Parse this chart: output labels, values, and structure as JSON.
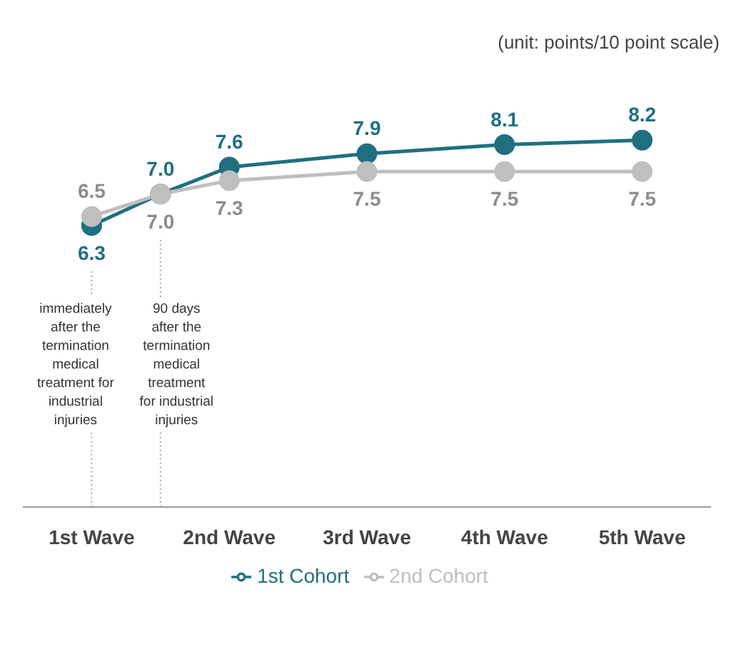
{
  "chart_data": {
    "type": "line",
    "x": [
      1,
      1.5,
      2,
      3,
      4,
      5
    ],
    "series": [
      {
        "name": "1st Cohort",
        "color": "#1f6f80",
        "values": [
          6.3,
          7.0,
          7.6,
          7.9,
          8.1,
          8.2
        ],
        "value_labels": [
          "6.3",
          "7.0",
          "7.6",
          "7.9",
          "8.1",
          "8.2"
        ]
      },
      {
        "name": "2nd Cohort",
        "color": "#bfbfbf",
        "values": [
          6.5,
          7.0,
          7.3,
          7.5,
          7.5,
          7.5
        ],
        "value_labels": [
          "6.5",
          "7.0",
          "7.3",
          "7.5",
          "7.5",
          "7.5"
        ]
      }
    ],
    "xlim": [
      0.5,
      5.5
    ],
    "xticks": [
      {
        "value": 1,
        "label": "1st Wave"
      },
      {
        "value": 2,
        "label": "2nd Wave"
      },
      {
        "value": 3,
        "label": "3rd Wave"
      },
      {
        "value": 4,
        "label": "4th Wave"
      },
      {
        "value": 5,
        "label": "5th Wave"
      }
    ],
    "tick_labels": "x",
    "marker": "circle",
    "line_style": "solid",
    "legend": "bottom",
    "annotations": [
      "(unit: points/10 point scale)"
    ],
    "ref_lines": [
      {
        "axis": "x",
        "value": 1,
        "label": "immediately\nafter the\ntermination\nmedical\ntreatment for\nindustrial\ninjuries",
        "color": "#7fb3c0",
        "line_style": "dotted"
      },
      {
        "axis": "x",
        "value": 1.5,
        "label": "90 days\nafter the\ntermination\nmedical\ntreatment\nfor industrial\ninjuries",
        "color": "#7fb3c0",
        "line_style": "dotted"
      }
    ]
  }
}
